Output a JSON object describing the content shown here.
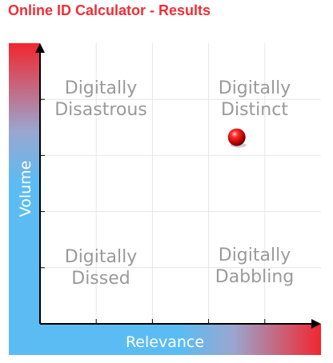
{
  "page_title": "Online ID Calculator - Results",
  "chart_data": {
    "type": "scatter",
    "title": "Online ID Calculator - Results",
    "xlabel": "Relevance",
    "ylabel": "Volume",
    "xlim": [
      0,
      1
    ],
    "ylim": [
      0,
      1
    ],
    "grid": true,
    "quadrants": {
      "top_left": [
        "Digitally",
        "Disastrous"
      ],
      "top_right": [
        "Digitally",
        "Distinct"
      ],
      "bottom_left": [
        "Digitally",
        "Dissed"
      ],
      "bottom_right": [
        "Digitally",
        "Dabbling"
      ]
    },
    "points": [
      {
        "x": 0.7,
        "y": 0.665
      }
    ],
    "colors": {
      "low": "#5bbcf3",
      "high": "#f2262f",
      "grid": "#e6e6e6",
      "axis": "#000000",
      "point": "#dd0000",
      "label": "#9a9a9a"
    }
  }
}
